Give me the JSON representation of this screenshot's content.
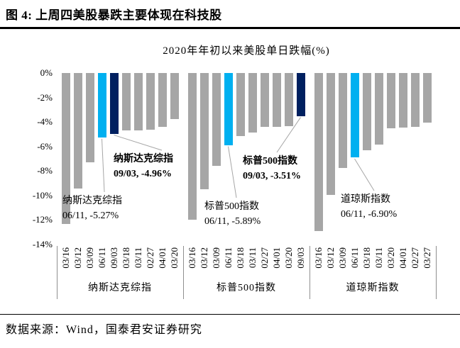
{
  "header": {
    "figure_label": "图 4:",
    "title": "上周四美股暴跌主要体现在科技股"
  },
  "footer": {
    "source": "数据来源：Wind，国泰君安证券研究"
  },
  "chart_data": {
    "type": "bar",
    "title": "2020年年初以来美股单日跌幅(%)",
    "ylim": [
      -14,
      0
    ],
    "ytick_labels": [
      "0%",
      "-2%",
      "-4%",
      "-6%",
      "-8%",
      "-10%",
      "-12%",
      "-14%"
    ],
    "grid": false,
    "legend": "none",
    "bar_colors": {
      "gray": "#A6A6A6",
      "lightblue": "#00B0F0",
      "navy": "#002060"
    },
    "leader_line_color": "#A6A6A6",
    "groups": [
      {
        "label": "纳斯达克综指",
        "bars": [
          {
            "date": "03/16",
            "value": -12.32,
            "color": "gray"
          },
          {
            "date": "03/12",
            "value": -9.43,
            "color": "gray"
          },
          {
            "date": "03/09",
            "value": -7.29,
            "color": "gray"
          },
          {
            "date": "06/11",
            "value": -5.27,
            "color": "lightblue"
          },
          {
            "date": "09/03",
            "value": -4.96,
            "color": "navy"
          },
          {
            "date": "03/18",
            "value": -4.7,
            "color": "gray"
          },
          {
            "date": "03/11",
            "value": -4.7,
            "color": "gray"
          },
          {
            "date": "02/27",
            "value": -4.61,
            "color": "gray"
          },
          {
            "date": "04/01",
            "value": -4.41,
            "color": "gray"
          },
          {
            "date": "03/20",
            "value": -3.79,
            "color": "gray"
          }
        ]
      },
      {
        "label": "标普500指数",
        "bars": [
          {
            "date": "03/16",
            "value": -11.98,
            "color": "gray"
          },
          {
            "date": "03/12",
            "value": -9.51,
            "color": "gray"
          },
          {
            "date": "03/09",
            "value": -7.6,
            "color": "gray"
          },
          {
            "date": "06/11",
            "value": -5.89,
            "color": "lightblue"
          },
          {
            "date": "03/18",
            "value": -5.18,
            "color": "gray"
          },
          {
            "date": "03/11",
            "value": -4.89,
            "color": "gray"
          },
          {
            "date": "02/27",
            "value": -4.42,
            "color": "gray"
          },
          {
            "date": "04/01",
            "value": -4.41,
            "color": "gray"
          },
          {
            "date": "03/20",
            "value": -4.34,
            "color": "gray"
          },
          {
            "date": "09/03",
            "value": -3.51,
            "color": "navy"
          }
        ]
      },
      {
        "label": "道琼斯指数",
        "bars": [
          {
            "date": "03/16",
            "value": -12.93,
            "color": "gray"
          },
          {
            "date": "03/12",
            "value": -9.99,
            "color": "gray"
          },
          {
            "date": "03/09",
            "value": -7.79,
            "color": "gray"
          },
          {
            "date": "06/11",
            "value": -6.9,
            "color": "lightblue"
          },
          {
            "date": "03/18",
            "value": -6.3,
            "color": "gray"
          },
          {
            "date": "03/11",
            "value": -5.86,
            "color": "gray"
          },
          {
            "date": "03/20",
            "value": -4.55,
            "color": "gray"
          },
          {
            "date": "04/01",
            "value": -4.44,
            "color": "gray"
          },
          {
            "date": "02/27",
            "value": -4.42,
            "color": "gray"
          },
          {
            "date": "03/27",
            "value": -4.06,
            "color": "gray"
          }
        ]
      }
    ],
    "annotations": [
      {
        "group": 0,
        "date": "09/03",
        "line1": "纳斯达克综指",
        "line2": "09/03, -4.96%",
        "bold": true
      },
      {
        "group": 0,
        "date": "06/11",
        "line1": "纳斯达克综指",
        "line2": "06/11, -5.27%",
        "bold": false
      },
      {
        "group": 1,
        "date": "09/03",
        "line1": "标普500指数",
        "line2": "09/03, -3.51%",
        "bold": true
      },
      {
        "group": 1,
        "date": "06/11",
        "line1": "标普500指数",
        "line2": "06/11, -5.89%",
        "bold": false
      },
      {
        "group": 2,
        "date": "06/11",
        "line1": "道琼斯指数",
        "line2": "06/11, -6.90%",
        "bold": false
      }
    ]
  }
}
